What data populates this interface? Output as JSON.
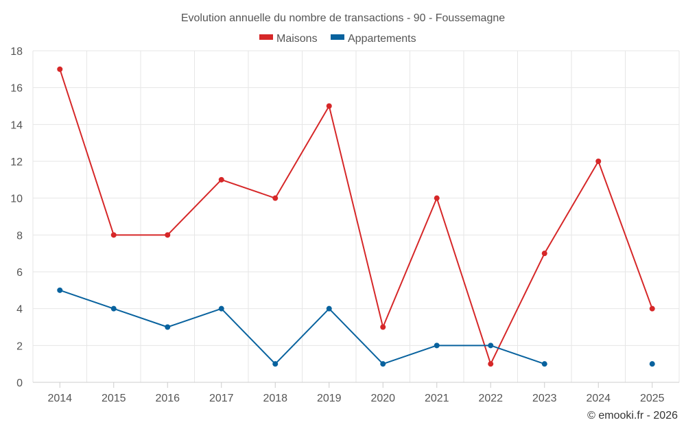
{
  "chart_data": {
    "type": "line",
    "title": "Evolution annuelle du nombre de transactions - 90 - Foussemagne",
    "categories": [
      "2014",
      "2015",
      "2016",
      "2017",
      "2018",
      "2019",
      "2020",
      "2021",
      "2022",
      "2023",
      "2024",
      "2025"
    ],
    "series": [
      {
        "name": "Maisons",
        "color": "#d62728",
        "values": [
          17,
          8,
          8,
          11,
          10,
          15,
          3,
          10,
          1,
          7,
          12,
          4
        ]
      },
      {
        "name": "Appartements",
        "color": "#08629e",
        "values": [
          5,
          4,
          3,
          4,
          1,
          4,
          1,
          2,
          2,
          1,
          null,
          1
        ]
      }
    ],
    "ylim": [
      0,
      18
    ],
    "yticks": [
      0,
      2,
      4,
      6,
      8,
      10,
      12,
      14,
      16,
      18
    ],
    "grid": true,
    "legend_position": "top-center",
    "credit": "© emooki.fr - 2026"
  }
}
